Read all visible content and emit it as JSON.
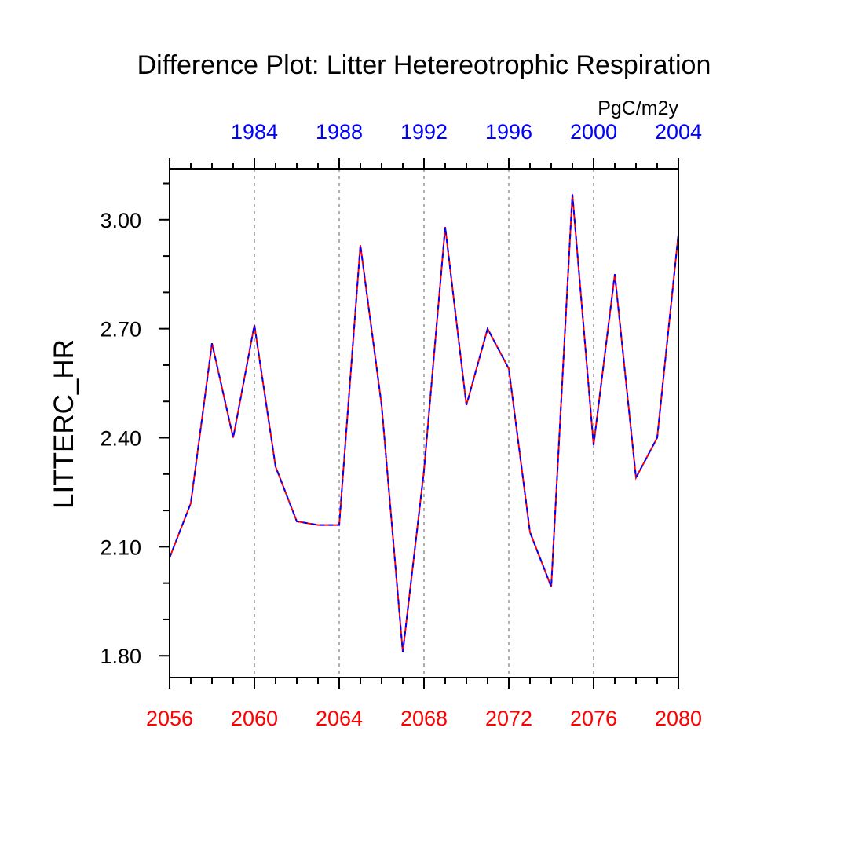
{
  "chart_data": {
    "type": "line",
    "title": "Difference Plot: Litter Hetereotrophic Respiration",
    "ylabel": "LITTERC_HR",
    "units": "PgC/m2y",
    "xlim": [
      2056,
      2080
    ],
    "ylim": [
      1.74,
      3.14
    ],
    "x_ticks": [
      2056,
      2060,
      2064,
      2068,
      2072,
      2076,
      2080
    ],
    "x_tick_labels": [
      "2056",
      "2060",
      "2064",
      "2068",
      "2072",
      "2076",
      "2080"
    ],
    "top_axis_ticks": [
      1984,
      1988,
      1992,
      1996,
      2000,
      2004
    ],
    "top_axis_tick_labels": [
      "1984",
      "1988",
      "1992",
      "1996",
      "2000",
      "2004"
    ],
    "top_axis_offset_years": 76,
    "y_ticks": [
      1.8,
      2.1,
      2.4,
      2.7,
      3.0
    ],
    "y_tick_labels": [
      "1.80",
      "2.10",
      "2.40",
      "2.70",
      "3.00"
    ],
    "grid": "vertical dotted at x ticks",
    "bottom_axis_color": "#ff0000",
    "top_axis_color": "#0000ff",
    "x": [
      2056,
      2057,
      2058,
      2059,
      2060,
      2061,
      2062,
      2063,
      2064,
      2065,
      2066,
      2067,
      2068,
      2069,
      2070,
      2071,
      2072,
      2073,
      2074,
      2075,
      2076,
      2077,
      2078,
      2079,
      2080
    ],
    "series": [
      {
        "color": "#ff0000",
        "values": [
          2.07,
          2.22,
          2.66,
          2.4,
          2.71,
          2.32,
          2.17,
          2.16,
          2.16,
          2.93,
          2.49,
          1.81,
          2.31,
          2.98,
          2.49,
          2.7,
          2.59,
          2.14,
          1.99,
          3.07,
          2.38,
          2.85,
          2.29,
          2.4,
          2.96
        ]
      },
      {
        "color": "#0000ff",
        "dash": "dashed",
        "values": [
          2.07,
          2.22,
          2.66,
          2.4,
          2.71,
          2.32,
          2.17,
          2.16,
          2.16,
          2.93,
          2.49,
          1.81,
          2.31,
          2.98,
          2.49,
          2.7,
          2.59,
          2.14,
          1.99,
          3.07,
          2.38,
          2.85,
          2.29,
          2.4,
          2.96
        ]
      }
    ]
  }
}
